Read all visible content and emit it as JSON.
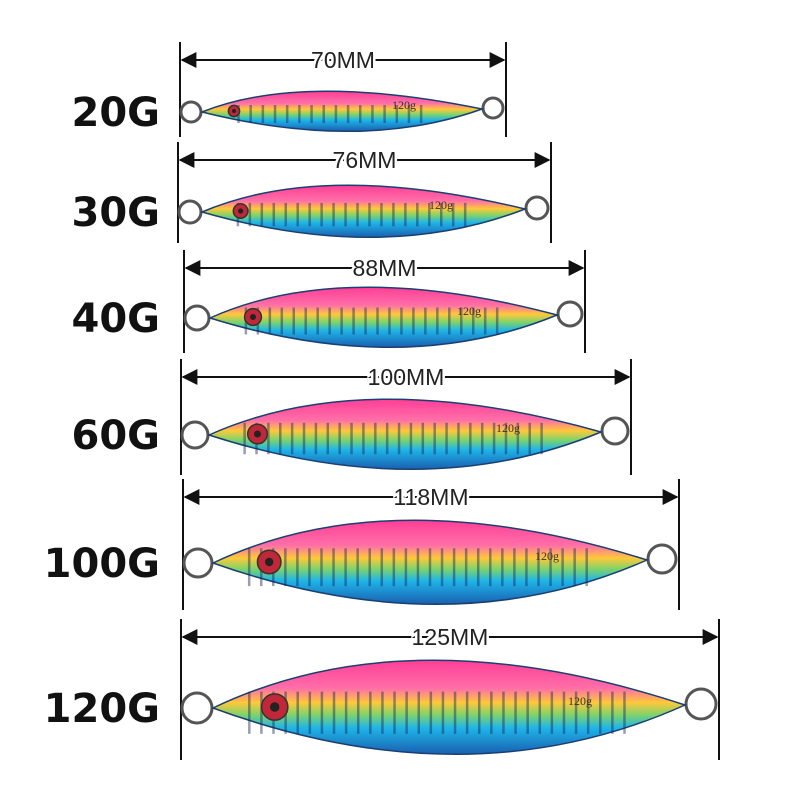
{
  "items": [
    {
      "weight": "20G",
      "length": "70MM",
      "marking": "120g"
    },
    {
      "weight": "30G",
      "length": "76MM",
      "marking": "120g"
    },
    {
      "weight": "40G",
      "length": "88MM",
      "marking": "120g"
    },
    {
      "weight": "60G",
      "length": "100MM",
      "marking": "120g"
    },
    {
      "weight": "100G",
      "length": "118MM",
      "marking": "120g"
    },
    {
      "weight": "120G",
      "length": "125MM",
      "marking": "120g"
    }
  ]
}
